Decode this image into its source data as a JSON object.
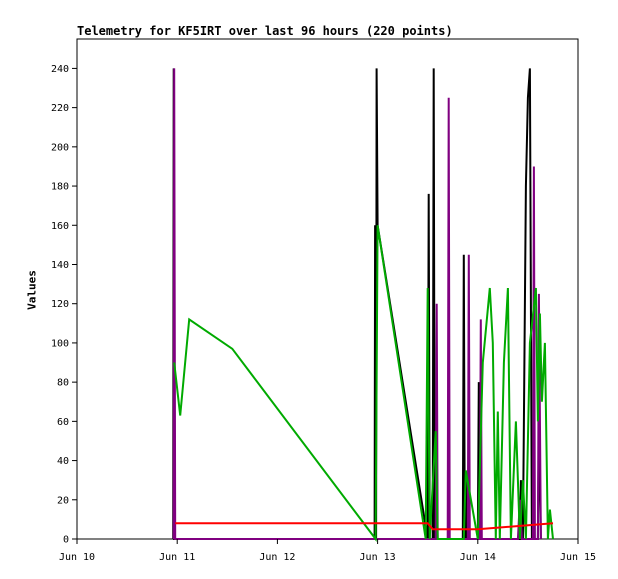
{
  "chart_data": {
    "type": "line",
    "title": "Telemetry for KF5IRT over last 96 hours (220 points)",
    "xlabel": "",
    "ylabel": "Values",
    "xlim": [
      "Jun 10",
      "Jun 15"
    ],
    "ylim": [
      0,
      255
    ],
    "grid": false,
    "legend": "none",
    "x_ticks": [
      "Jun 10",
      "Jun 11",
      "Jun 12",
      "Jun 13",
      "Jun 14",
      "Jun 15"
    ],
    "y_ticks": [
      0,
      20,
      40,
      60,
      80,
      100,
      120,
      140,
      160,
      180,
      200,
      220,
      240
    ],
    "series": [
      {
        "color": "#000000",
        "points": [
          [
            10.96,
            0
          ],
          [
            10.965,
            240
          ],
          [
            10.97,
            0
          ],
          [
            12.97,
            0
          ],
          [
            12.975,
            160
          ],
          [
            12.985,
            0
          ],
          [
            12.99,
            240
          ],
          [
            13.0,
            160
          ],
          [
            13.5,
            0
          ],
          [
            13.51,
            176
          ],
          [
            13.52,
            0
          ],
          [
            13.55,
            0
          ],
          [
            13.56,
            240
          ],
          [
            13.57,
            0
          ],
          [
            13.85,
            0
          ],
          [
            13.86,
            145
          ],
          [
            13.87,
            0
          ],
          [
            13.88,
            32
          ],
          [
            13.89,
            0
          ],
          [
            14.0,
            0
          ],
          [
            14.01,
            80
          ],
          [
            14.02,
            0
          ],
          [
            14.42,
            0
          ],
          [
            14.43,
            30
          ],
          [
            14.45,
            0
          ],
          [
            14.48,
            180
          ],
          [
            14.5,
            225
          ],
          [
            14.52,
            240
          ],
          [
            14.54,
            0
          ],
          [
            14.6,
            0
          ],
          [
            14.61,
            60
          ],
          [
            14.63,
            0
          ]
        ]
      },
      {
        "color": "#800080",
        "points": [
          [
            10.965,
            0
          ],
          [
            10.97,
            240
          ],
          [
            10.975,
            120
          ],
          [
            10.98,
            0
          ],
          [
            13.58,
            0
          ],
          [
            13.59,
            120
          ],
          [
            13.6,
            0
          ],
          [
            13.7,
            0
          ],
          [
            13.71,
            225
          ],
          [
            13.72,
            0
          ],
          [
            13.9,
            0
          ],
          [
            13.91,
            145
          ],
          [
            13.92,
            0
          ],
          [
            14.02,
            0
          ],
          [
            14.03,
            112
          ],
          [
            14.04,
            0
          ],
          [
            14.4,
            0
          ],
          [
            14.42,
            20
          ],
          [
            14.44,
            0
          ],
          [
            14.55,
            0
          ],
          [
            14.56,
            190
          ],
          [
            14.57,
            0
          ],
          [
            14.6,
            0
          ],
          [
            14.61,
            125
          ],
          [
            14.63,
            0
          ]
        ]
      },
      {
        "color": "#00aa00",
        "points": [
          [
            10.97,
            90
          ],
          [
            11.03,
            63
          ],
          [
            11.12,
            112
          ],
          [
            11.55,
            97
          ],
          [
            12.98,
            0
          ],
          [
            13.0,
            160
          ],
          [
            13.48,
            0
          ],
          [
            13.5,
            128
          ],
          [
            13.52,
            0
          ],
          [
            13.58,
            55
          ],
          [
            13.6,
            0
          ],
          [
            13.86,
            0
          ],
          [
            13.88,
            35
          ],
          [
            14.0,
            0
          ],
          [
            14.05,
            90
          ],
          [
            14.12,
            128
          ],
          [
            14.15,
            100
          ],
          [
            14.18,
            0
          ],
          [
            14.2,
            65
          ],
          [
            14.22,
            0
          ],
          [
            14.26,
            90
          ],
          [
            14.3,
            128
          ],
          [
            14.33,
            0
          ],
          [
            14.38,
            60
          ],
          [
            14.42,
            0
          ],
          [
            14.45,
            30
          ],
          [
            14.48,
            0
          ],
          [
            14.52,
            100
          ],
          [
            14.58,
            128
          ],
          [
            14.6,
            60
          ],
          [
            14.62,
            115
          ],
          [
            14.64,
            70
          ],
          [
            14.67,
            100
          ],
          [
            14.7,
            0
          ],
          [
            14.72,
            15
          ],
          [
            14.75,
            0
          ]
        ]
      },
      {
        "color": "#ff0000",
        "points": [
          [
            10.98,
            8
          ],
          [
            13.5,
            8
          ],
          [
            13.55,
            5
          ],
          [
            14.0,
            5
          ],
          [
            14.75,
            8
          ]
        ]
      }
    ]
  }
}
